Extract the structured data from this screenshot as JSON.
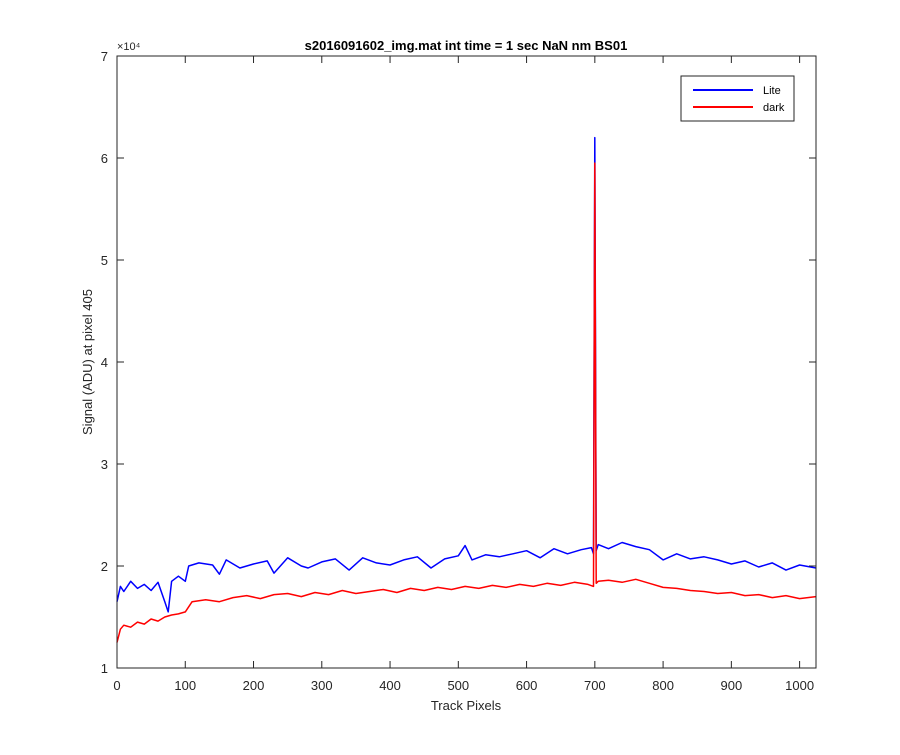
{
  "chart_data": {
    "type": "line",
    "title": "s2016091602_img.mat int time = 1 sec  NaN nm BS01",
    "xlabel": "Track Pixels",
    "ylabel": "Signal (ADU) at pixel 405",
    "xlim": [
      0,
      1024
    ],
    "ylim": [
      10000,
      70000
    ],
    "x_ticks": [
      0,
      100,
      200,
      300,
      400,
      500,
      600,
      700,
      800,
      900,
      1000
    ],
    "y_ticks": [
      10000,
      20000,
      30000,
      40000,
      50000,
      60000,
      70000
    ],
    "x_tick_labels": [
      "0",
      "100",
      "200",
      "300",
      "400",
      "500",
      "600",
      "700",
      "800",
      "900",
      "1000"
    ],
    "y_tick_labels": [
      "1",
      "2",
      "3",
      "4",
      "5",
      "6",
      "7"
    ],
    "y_exponent_label": "×10⁴",
    "grid": false,
    "legend_position": "top-right",
    "series": [
      {
        "name": "Lite",
        "color": "#0000ff",
        "x": [
          0,
          5,
          10,
          20,
          30,
          40,
          50,
          60,
          70,
          75,
          80,
          90,
          100,
          105,
          120,
          140,
          150,
          160,
          180,
          200,
          220,
          230,
          250,
          270,
          280,
          300,
          320,
          340,
          360,
          380,
          400,
          420,
          440,
          460,
          480,
          500,
          510,
          520,
          540,
          560,
          580,
          600,
          620,
          640,
          660,
          680,
          695,
          698,
          700,
          702,
          705,
          720,
          740,
          760,
          780,
          800,
          820,
          840,
          860,
          880,
          900,
          920,
          940,
          960,
          980,
          1000,
          1024
        ],
        "y": [
          16500,
          18000,
          17500,
          18500,
          17800,
          18200,
          17600,
          18400,
          16500,
          15500,
          18500,
          19000,
          18500,
          20000,
          20300,
          20100,
          19200,
          20600,
          19800,
          20200,
          20500,
          19300,
          20800,
          20000,
          19800,
          20400,
          20700,
          19600,
          20800,
          20300,
          20100,
          20600,
          20900,
          19800,
          20700,
          21000,
          22000,
          20600,
          21100,
          20900,
          21200,
          21500,
          20800,
          21700,
          21200,
          21600,
          21800,
          21200,
          62000,
          21500,
          22100,
          21700,
          22300,
          21900,
          21600,
          20600,
          21200,
          20700,
          20900,
          20600,
          20200,
          20500,
          19900,
          20300,
          19600,
          20100,
          19800
        ]
      },
      {
        "name": "dark",
        "color": "#ff0000",
        "x": [
          0,
          5,
          10,
          20,
          30,
          40,
          50,
          60,
          70,
          80,
          90,
          100,
          110,
          130,
          150,
          170,
          190,
          210,
          230,
          250,
          270,
          290,
          310,
          330,
          350,
          370,
          390,
          410,
          430,
          450,
          470,
          490,
          510,
          530,
          550,
          570,
          590,
          610,
          630,
          650,
          670,
          690,
          698,
          700,
          702,
          705,
          720,
          740,
          760,
          780,
          800,
          820,
          840,
          860,
          880,
          900,
          920,
          940,
          960,
          980,
          1000,
          1024
        ],
        "y": [
          12500,
          13800,
          14200,
          14000,
          14500,
          14300,
          14800,
          14600,
          15000,
          15200,
          15300,
          15500,
          16500,
          16700,
          16500,
          16900,
          17100,
          16800,
          17200,
          17300,
          17000,
          17400,
          17200,
          17600,
          17300,
          17500,
          17700,
          17400,
          17800,
          17600,
          17900,
          17700,
          18000,
          17800,
          18100,
          17900,
          18200,
          18000,
          18300,
          18100,
          18400,
          18200,
          18000,
          59500,
          18300,
          18500,
          18600,
          18400,
          18700,
          18300,
          17900,
          17800,
          17600,
          17500,
          17300,
          17400,
          17100,
          17200,
          16900,
          17100,
          16800,
          17000
        ]
      }
    ]
  }
}
